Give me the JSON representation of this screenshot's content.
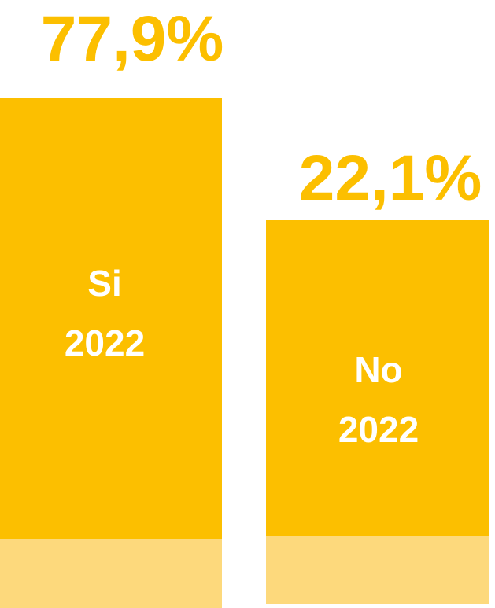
{
  "items": [
    {
      "value_label": "77,9%",
      "label": "Si",
      "year": "2022"
    },
    {
      "value_label": "22,1%",
      "label": "No",
      "year": "2022"
    }
  ]
}
